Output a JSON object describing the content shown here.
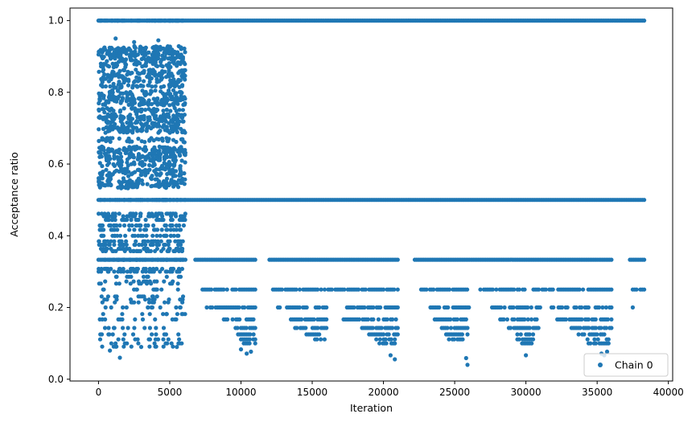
{
  "chart_data": {
    "type": "scatter",
    "title": "",
    "xlabel": "Iteration",
    "ylabel": "Acceptance ratio",
    "xlim": [
      -2000,
      40300
    ],
    "ylim": [
      -0.005,
      1.035
    ],
    "xticks": [
      0,
      5000,
      10000,
      15000,
      20000,
      25000,
      30000,
      35000,
      40000
    ],
    "xtick_labels": [
      "0",
      "5000",
      "10000",
      "15000",
      "20000",
      "25000",
      "30000",
      "35000",
      "40000"
    ],
    "yticks": [
      0.0,
      0.2,
      0.4,
      0.6,
      0.8,
      1.0
    ],
    "ytick_labels": [
      "0.0",
      "0.2",
      "0.4",
      "0.6",
      "0.8",
      "1.0"
    ],
    "grid": false,
    "legend": {
      "position": "lower-right",
      "entries": [
        "Chain 0"
      ]
    },
    "series": [
      {
        "name": "Chain 0",
        "color": "#1f77b4",
        "marker": "circle",
        "bands": [
          {
            "y": 1.0,
            "x_ranges": [
              [
                0,
                38300
              ]
            ]
          },
          {
            "y": 0.5,
            "x_ranges": [
              [
                0,
                38300
              ]
            ]
          },
          {
            "y": 0.3333,
            "x_ranges": [
              [
                0,
                6100
              ],
              [
                6800,
                11000
              ],
              [
                12000,
                21000
              ],
              [
                22200,
                36000
              ],
              [
                37300,
                38300
              ]
            ]
          },
          {
            "y": 0.25,
            "x_ranges": [
              [
                7300,
                11000
              ],
              [
                12000,
                21000
              ],
              [
                22400,
                26000
              ],
              [
                26800,
                36000
              ],
              [
                37500,
                38300
              ]
            ]
          },
          {
            "y": 0.2,
            "x_ranges": [
              [
                7600,
                11000
              ],
              [
                12600,
                16000
              ],
              [
                17200,
                21000
              ],
              [
                23300,
                26000
              ],
              [
                27500,
                31000
              ],
              [
                31800,
                36000
              ]
            ]
          },
          {
            "y": 0.1667,
            "x_ranges": [
              [
                8800,
                11000
              ],
              [
                13500,
                16000
              ],
              [
                17200,
                21000
              ],
              [
                23600,
                25800
              ],
              [
                28200,
                31000
              ],
              [
                32200,
                36000
              ]
            ]
          },
          {
            "y": 0.1429,
            "x_ranges": [
              [
                9500,
                11000
              ],
              [
                13800,
                16000
              ],
              [
                18500,
                21000
              ],
              [
                24100,
                25900
              ],
              [
                28800,
                31000
              ],
              [
                33200,
                36000
              ]
            ]
          },
          {
            "y": 0.125,
            "x_ranges": [
              [
                9800,
                11000
              ],
              [
                14600,
                16000
              ],
              [
                19000,
                21000
              ],
              [
                24400,
                25900
              ],
              [
                29400,
                30500
              ],
              [
                33700,
                35500
              ]
            ]
          },
          {
            "y": 0.1111,
            "x_ranges": [
              [
                10000,
                11000
              ],
              [
                15200,
                16000
              ],
              [
                19500,
                20800
              ],
              [
                24600,
                25800
              ],
              [
                29400,
                30500
              ],
              [
                34200,
                35800
              ]
            ]
          },
          {
            "y": 0.1,
            "x_ranges": [
              [
                10200,
                11000
              ],
              [
                19600,
                20800
              ],
              [
                29600,
                30400
              ],
              [
                34400,
                35800
              ]
            ]
          }
        ],
        "early_levels": [
          0.0909,
          0.1,
          0.1111,
          0.125,
          0.1429,
          0.1667,
          0.1818,
          0.2,
          0.2143,
          0.2222,
          0.2308,
          0.25,
          0.2667,
          0.2727,
          0.2857,
          0.3,
          0.3077,
          0.3333,
          0.3571,
          0.3636,
          0.375,
          0.3846,
          0.4,
          0.4167,
          0.4286,
          0.4444,
          0.4545,
          0.4615,
          0.5,
          0.5385,
          0.5455,
          0.5556,
          0.5714,
          0.5833,
          0.6,
          0.6154,
          0.625,
          0.6364,
          0.6429,
          0.6667,
          0.6923,
          0.7,
          0.7143,
          0.7273,
          0.7333,
          0.75,
          0.7692,
          0.7778,
          0.7857,
          0.8,
          0.8182,
          0.8333,
          0.8462,
          0.8571,
          0.875,
          0.8889,
          0.9,
          0.9091,
          0.9167,
          0.9231,
          1.0
        ],
        "early_x_range": [
          0,
          6100
        ],
        "tail_points": [
          [
            10000,
            0.0833
          ],
          [
            10400,
            0.0714
          ],
          [
            10700,
            0.0769
          ],
          [
            20500,
            0.0667
          ],
          [
            20800,
            0.0556
          ],
          [
            25800,
            0.0588
          ],
          [
            25900,
            0.04
          ],
          [
            30000,
            0.0667
          ],
          [
            35300,
            0.0714
          ],
          [
            35500,
            0.0667
          ],
          [
            35700,
            0.0769
          ],
          [
            37500,
            0.2
          ],
          [
            1500,
            0.06
          ],
          [
            800,
            0.08
          ],
          [
            3000,
            0.09
          ],
          [
            5500,
            0.09
          ],
          [
            1200,
            0.95
          ],
          [
            4200,
            0.945
          ],
          [
            2500,
            0.94
          ]
        ]
      }
    ]
  }
}
